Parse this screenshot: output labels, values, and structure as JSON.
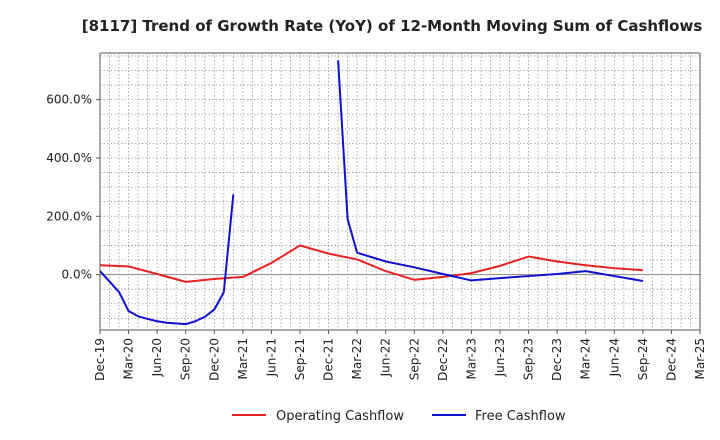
{
  "chart_data": {
    "type": "line",
    "title": "[8117]  Trend of Growth Rate (YoY) of 12-Month Moving Sum of Cashflows",
    "xlabel": "",
    "ylabel": "",
    "x_ticks": [
      "Dec-19",
      "Mar-20",
      "Jun-20",
      "Sep-20",
      "Dec-20",
      "Mar-21",
      "Jun-21",
      "Sep-21",
      "Dec-21",
      "Mar-22",
      "Jun-22",
      "Sep-22",
      "Dec-22",
      "Mar-23",
      "Jun-23",
      "Sep-23",
      "Dec-23",
      "Mar-24",
      "Jun-24",
      "Sep-24",
      "Dec-24",
      "Mar-25"
    ],
    "y_ticks": [
      0,
      200,
      400,
      600
    ],
    "y_tick_labels": [
      "0.0%",
      "200.0%",
      "400.0%",
      "600.0%"
    ],
    "ylim": [
      -190,
      760
    ],
    "x_range": [
      "Dec-19",
      "Mar-25"
    ],
    "grid": true,
    "legend_position": "bottom",
    "series": [
      {
        "name": "Operating Cashflow",
        "color": "#e8231f",
        "points": [
          [
            "Dec-19",
            32
          ],
          [
            "Mar-20",
            28
          ],
          [
            "Jun-20",
            2
          ],
          [
            "Sep-20",
            -25
          ],
          [
            "Dec-20",
            -15
          ],
          [
            "Mar-21",
            -8
          ],
          [
            "Jun-21",
            40
          ],
          [
            "Sep-21",
            100
          ],
          [
            "Dec-21",
            72
          ],
          [
            "Mar-22",
            52
          ],
          [
            "Jun-22",
            12
          ],
          [
            "Sep-22",
            -18
          ],
          [
            "Dec-22",
            -8
          ],
          [
            "Mar-23",
            5
          ],
          [
            "Jun-23",
            30
          ],
          [
            "Sep-23",
            62
          ],
          [
            "Dec-23",
            45
          ],
          [
            "Mar-24",
            32
          ],
          [
            "Jun-24",
            22
          ],
          [
            "Sep-24",
            15
          ]
        ]
      },
      {
        "name": "Free Cashflow",
        "color": "#1010d0",
        "points": [
          [
            "Dec-19",
            12
          ],
          [
            "Feb-20",
            -60
          ],
          [
            "Mar-20",
            -125
          ],
          [
            "Apr-20",
            -143
          ],
          [
            "May-20",
            -152
          ],
          [
            "Jun-20",
            -160
          ],
          [
            "Jul-20",
            -165
          ],
          [
            "Sep-20",
            -170
          ],
          [
            "Oct-20",
            -160
          ],
          [
            "Nov-20",
            -145
          ],
          [
            "Dec-20",
            -120
          ],
          [
            "Jan-21",
            -60
          ],
          [
            "Feb-21",
            275
          ],
          [
            "Jan-22",
            735
          ],
          [
            "Feb-22",
            190
          ],
          [
            "Mar-22",
            75
          ],
          [
            "Jun-22",
            45
          ],
          [
            "Sep-22",
            25
          ],
          [
            "Dec-22",
            2
          ],
          [
            "Mar-23",
            -20
          ],
          [
            "Jun-23",
            -12
          ],
          [
            "Sep-23",
            -5
          ],
          [
            "Dec-23",
            2
          ],
          [
            "Mar-24",
            12
          ],
          [
            "Jun-24",
            -5
          ],
          [
            "Sep-24",
            -22
          ]
        ]
      }
    ]
  }
}
